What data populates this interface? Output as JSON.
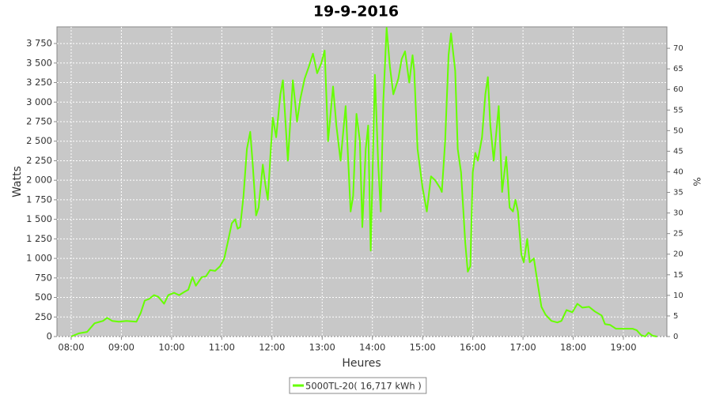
{
  "chart_data": {
    "type": "line",
    "title": "19-9-2016",
    "xlabel": "Heures",
    "ylabel": "Watts",
    "y2label": "%",
    "x": [
      "08:00",
      "08:09",
      "08:19",
      "08:28",
      "08:38",
      "08:43",
      "08:49",
      "08:57",
      "09:06",
      "09:18",
      "09:23",
      "09:28",
      "09:33",
      "09:39",
      "09:44",
      "09:51",
      "09:56",
      "10:03",
      "10:09",
      "10:15",
      "10:20",
      "10:25",
      "10:29",
      "10:36",
      "10:41",
      "10:46",
      "10:52",
      "10:58",
      "11:03",
      "11:07",
      "11:12",
      "11:16",
      "11:19",
      "11:22",
      "11:26",
      "11:30",
      "11:34",
      "11:37",
      "11:41",
      "11:44",
      "11:49",
      "11:52",
      "11:55",
      "11:58",
      "12:01",
      "12:05",
      "12:10",
      "12:13",
      "12:19",
      "12:25",
      "12:30",
      "12:34",
      "12:39",
      "12:44",
      "12:49",
      "12:54",
      "12:59",
      "13:03",
      "13:07",
      "13:13",
      "13:17",
      "13:22",
      "13:28",
      "13:34",
      "13:37",
      "13:41",
      "13:45",
      "13:48",
      "13:52",
      "13:55",
      "13:58",
      "14:03",
      "14:07",
      "14:10",
      "14:13",
      "14:17",
      "14:21",
      "14:25",
      "14:31",
      "14:35",
      "14:39",
      "14:44",
      "14:48",
      "14:50",
      "14:54",
      "15:00",
      "15:05",
      "15:10",
      "15:15",
      "15:21",
      "15:23",
      "15:27",
      "15:31",
      "15:34",
      "15:39",
      "15:42",
      "15:46",
      "15:51",
      "15:54",
      "15:57",
      "16:00",
      "16:03",
      "16:06",
      "16:11",
      "16:15",
      "16:18",
      "16:21",
      "16:25",
      "16:31",
      "16:35",
      "16:40",
      "16:44",
      "16:48",
      "16:51",
      "16:54",
      "16:58",
      "17:01",
      "17:05",
      "17:08",
      "17:13",
      "17:18",
      "17:22",
      "17:27",
      "17:34",
      "17:41",
      "17:46",
      "17:52",
      "17:59",
      "18:05",
      "18:11",
      "18:19",
      "18:26",
      "18:34",
      "18:38",
      "18:44",
      "18:51",
      "19:02",
      "19:11",
      "19:16",
      "19:21",
      "19:26",
      "19:30",
      "19:35",
      "19:40"
    ],
    "series": [
      {
        "name": "5000TL-20( 16,717 kWh )",
        "color": "#66ff00",
        "values": [
          0,
          40,
          60,
          170,
          200,
          240,
          200,
          190,
          200,
          190,
          300,
          460,
          480,
          530,
          510,
          420,
          530,
          560,
          530,
          570,
          600,
          760,
          650,
          760,
          770,
          850,
          840,
          900,
          1000,
          1200,
          1450,
          1500,
          1380,
          1400,
          1800,
          2400,
          2620,
          2200,
          1550,
          1650,
          2200,
          1950,
          1750,
          2300,
          2800,
          2550,
          3100,
          3280,
          2250,
          3280,
          2750,
          3050,
          3300,
          3450,
          3620,
          3370,
          3500,
          3660,
          2500,
          3200,
          2700,
          2250,
          2950,
          1600,
          1800,
          2850,
          2500,
          1400,
          2400,
          2700,
          1100,
          3350,
          2200,
          1600,
          3000,
          3950,
          3450,
          3100,
          3300,
          3550,
          3650,
          3250,
          3600,
          3400,
          2400,
          1900,
          1600,
          2050,
          2000,
          1900,
          1850,
          2500,
          3600,
          3880,
          3400,
          2400,
          2100,
          1200,
          830,
          900,
          2100,
          2350,
          2250,
          2550,
          3100,
          3320,
          2700,
          2250,
          2950,
          1850,
          2300,
          1650,
          1600,
          1750,
          1600,
          1050,
          950,
          1250,
          950,
          1000,
          650,
          380,
          280,
          200,
          180,
          200,
          340,
          310,
          420,
          370,
          380,
          320,
          270,
          160,
          150,
          100,
          100,
          100,
          80,
          20,
          0,
          50,
          10,
          0
        ]
      }
    ],
    "xlim": [
      "07:43",
      "19:52"
    ],
    "xticks": [
      "08:00",
      "09:00",
      "10:00",
      "11:00",
      "12:00",
      "13:00",
      "14:00",
      "15:00",
      "16:00",
      "17:00",
      "18:00",
      "19:00"
    ],
    "ylim": [
      0,
      3963
    ],
    "yticks": [
      0,
      250,
      500,
      750,
      {
        "value": 1000,
        "label": "1 000"
      },
      {
        "value": 1250,
        "label": "1 250"
      },
      {
        "value": 1500,
        "label": "1 500"
      },
      {
        "value": 1750,
        "label": "1 750"
      },
      {
        "value": 2000,
        "label": "2 000"
      },
      {
        "value": 2250,
        "label": "2 250"
      },
      {
        "value": 2500,
        "label": "2 500"
      },
      {
        "value": 2750,
        "label": "2 750"
      },
      {
        "value": 3000,
        "label": "3 000"
      },
      {
        "value": 3250,
        "label": "3 250"
      },
      {
        "value": 3500,
        "label": "3 500"
      },
      {
        "value": 3750,
        "label": "3 750"
      }
    ],
    "y2lim": [
      0,
      75.2
    ],
    "y2ticks": [
      0,
      5,
      10,
      15,
      20,
      25,
      30,
      35,
      40,
      45,
      50,
      55,
      60,
      65,
      70
    ],
    "grid": true,
    "legend": "bottom",
    "background": "#c8c8c8"
  }
}
